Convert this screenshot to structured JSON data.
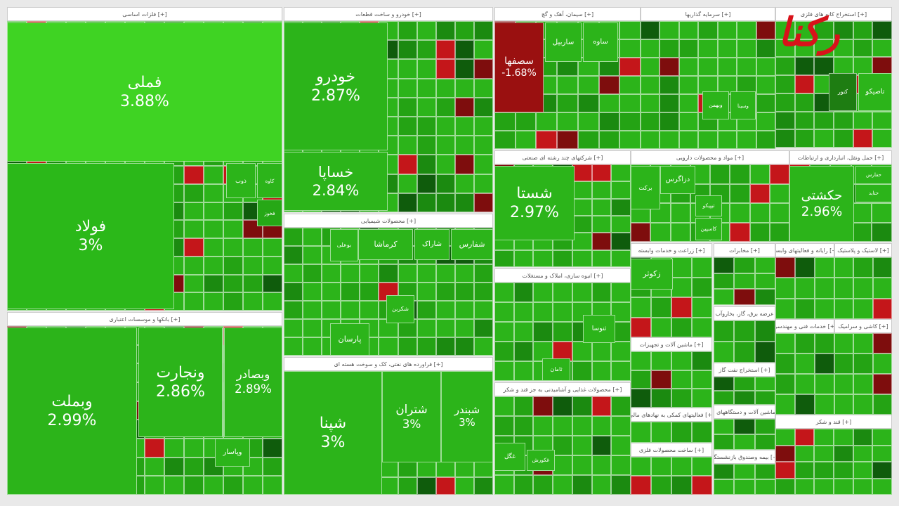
{
  "logo": "رکنا",
  "sectors": [
    {
      "header": "فلزات اساسی [+]",
      "tiles": [
        {
          "label": "فملی",
          "change": "3.88%"
        },
        {
          "label": "فولاد",
          "change": "3%"
        },
        {
          "label": "کاوه"
        },
        {
          "label": "ذوب"
        },
        {
          "label": "فخوز"
        }
      ]
    },
    {
      "header": "بانکها و موسسات اعتباری [+]",
      "tiles": [
        {
          "label": "وبملت",
          "change": "2.99%"
        },
        {
          "label": "ونجارت",
          "change": "2.86%"
        },
        {
          "label": "وبصادر",
          "change": "2.89%"
        },
        {
          "label": "وپاسار"
        }
      ]
    },
    {
      "header": "خودرو و ساخت قطعات [+]",
      "tiles": [
        {
          "label": "خودرو",
          "change": "2.87%"
        },
        {
          "label": "خساپا",
          "change": "2.84%"
        }
      ]
    },
    {
      "header": "محصولات شیمیایی [+]",
      "tiles": [
        {
          "label": "شفارس"
        },
        {
          "label": "شاراک"
        },
        {
          "label": "کرماشا"
        },
        {
          "label": "بوعلی"
        },
        {
          "label": "شکربن"
        },
        {
          "label": "پارسان"
        }
      ]
    },
    {
      "header": "فراورده های نفتی، کک و سوخت هسته ای [+]",
      "tiles": [
        {
          "label": "شپنا",
          "change": "3%"
        },
        {
          "label": "شتران",
          "change": "3%"
        },
        {
          "label": "شبندر",
          "change": "3%"
        }
      ]
    },
    {
      "header": "سیمان، آهک و گچ [+]",
      "tiles": [
        {
          "label": "سصفها",
          "change": "-1.68%"
        },
        {
          "label": "ساربیل"
        },
        {
          "label": "ساوه"
        }
      ]
    },
    {
      "header": "سرمایه گذاریها [+]",
      "tiles": [
        {
          "label": "وبهمن"
        },
        {
          "label": "وسینا"
        }
      ]
    },
    {
      "header": "استخراج کانه های فلزی [+]",
      "tiles": [
        {
          "label": "کنور"
        },
        {
          "label": "تاصیکو"
        }
      ]
    },
    {
      "header": "شرکتهای چند رشته ای صنعتی [+]",
      "tiles": [
        {
          "label": "شستا",
          "change": "2.97%"
        }
      ]
    },
    {
      "header": "مواد و محصولات دارویی [+]",
      "tiles": [
        {
          "label": "برکت"
        },
        {
          "label": "دزاگرس"
        },
        {
          "label": "تیپیکو"
        },
        {
          "label": "کاسپین"
        }
      ]
    },
    {
      "header": "حمل ونقل، انبارداری و ارتباطات [+]",
      "tiles": [
        {
          "label": "حکشتی",
          "change": "2.96%"
        },
        {
          "label": "حفارس"
        },
        {
          "label": "حتاید"
        }
      ]
    },
    {
      "header": "انبوه سازی، املاک و مستغلات [+]",
      "tiles": [
        {
          "label": "ثنوسا"
        },
        {
          "label": "ثامان"
        }
      ]
    },
    {
      "header": "محصولات غذایی و آشامیدنی به جز قند و شکر [+]",
      "tiles": [
        {
          "label": "غکورش"
        },
        {
          "label": "غگل"
        }
      ]
    },
    {
      "header": "زراعت و خدمات وابسته [+]",
      "tiles": [
        {
          "label": "زکوثر"
        }
      ]
    },
    {
      "header": "مخابرات [+]",
      "tiles": []
    },
    {
      "header": "رایانه و فعالیتهای وابسته [+]",
      "tiles": []
    },
    {
      "header": "لاستیک و پلاستیک [+]",
      "tiles": []
    },
    {
      "header": "عرضه برق، گاز، بخاروآب گرم [+]",
      "tiles": []
    },
    {
      "header": "ماشین آلات و تجهیزات [+]",
      "tiles": []
    },
    {
      "header": "فعالیتهای کمکی به نهادهای مالی [+]",
      "tiles": []
    },
    {
      "header": "ساخت محصولات فلزی [+]",
      "tiles": []
    },
    {
      "header": "استخراج نفت گاز [+]",
      "tiles": []
    },
    {
      "header": "خدمات فنی و مهندسی [+]",
      "tiles": []
    },
    {
      "header": "ماشین آلات و دستگاههای برقی [+]",
      "tiles": []
    },
    {
      "header": "بیمه وصندوق بازنشستگی [+]",
      "tiles": []
    },
    {
      "header": "کاشی و سرامیک [+]",
      "tiles": []
    },
    {
      "header": "قند و شکر [+]",
      "tiles": []
    }
  ]
}
